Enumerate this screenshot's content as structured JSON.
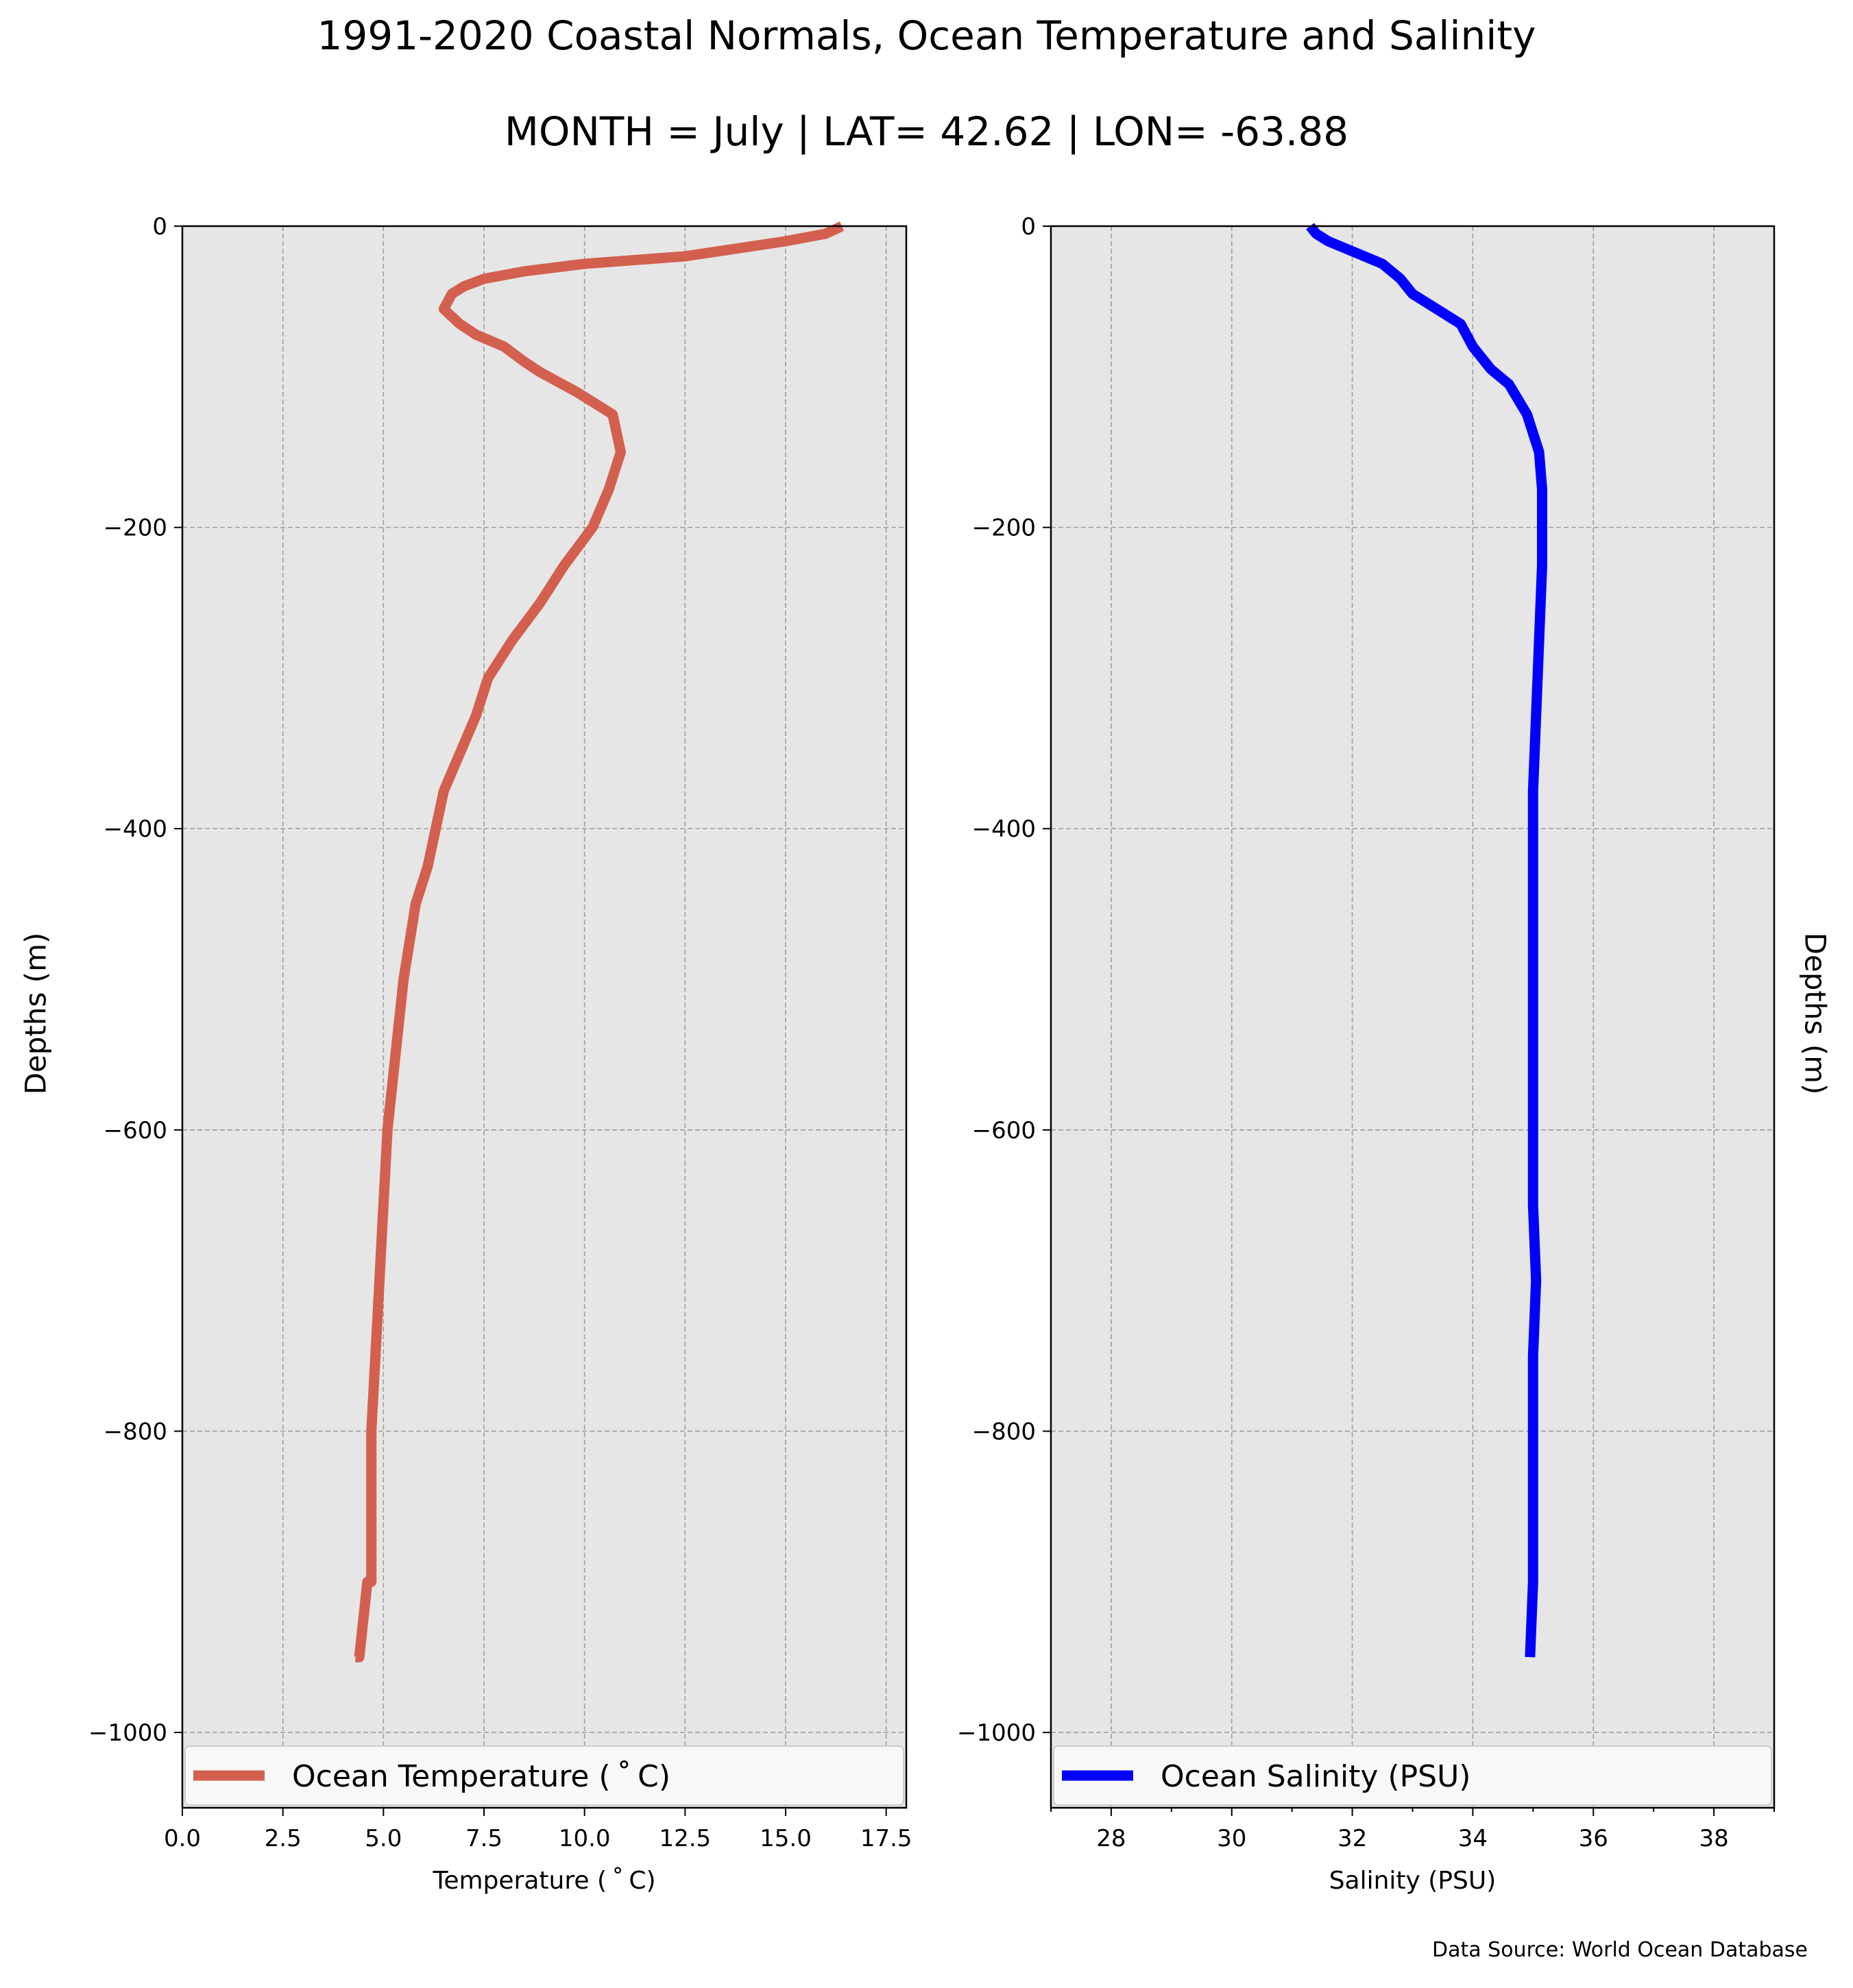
{
  "title": "1991-2020 Coastal Normals, Ocean Temperature and Salinity",
  "subtitle": "MONTH = July | LAT= 42.62 | LON= -63.88",
  "source": "Data Source: World Ocean Database",
  "ylabel_left": "Depths (m)",
  "ylabel_right": "Depths (m)",
  "colors": {
    "temperature": "#d35f4e",
    "salinity": "#0000ff",
    "plot_bg": "#e6e6e6",
    "grid": "#9e9e9e"
  },
  "chart_data": [
    {
      "type": "line",
      "xlabel": "Temperature ($^\\circ$C)",
      "xlabel_text": "Temperature ( ˚ C)",
      "xlim": [
        0,
        18
      ],
      "ylim": [
        -1050,
        0
      ],
      "xticks": [
        0.0,
        2.5,
        5.0,
        7.5,
        10.0,
        12.5,
        15.0,
        17.5
      ],
      "xtick_labels": [
        "0.0",
        "2.5",
        "5.0",
        "7.5",
        "10.0",
        "12.5",
        "15.0",
        "17.5"
      ],
      "yticks": [
        0,
        -200,
        -400,
        -600,
        -800,
        -1000
      ],
      "ytick_labels": [
        "0",
        "−200",
        "−400",
        "−600",
        "−800",
        "−1000"
      ],
      "grid": true,
      "legend_position": "bottom",
      "series": [
        {
          "name": "Ocean Temperature ($^\\circ$C)",
          "label_text": "Ocean Temperature ( ˚ C)",
          "x": [
            16.4,
            16.0,
            15.0,
            12.5,
            10.0,
            8.5,
            7.5,
            7.0,
            6.7,
            6.5,
            6.9,
            7.3,
            8.0,
            8.5,
            8.9,
            9.8,
            10.7,
            10.9,
            10.6,
            10.2,
            9.5,
            8.9,
            8.2,
            7.6,
            7.3,
            6.9,
            6.5,
            6.1,
            5.8,
            5.5,
            5.3,
            5.1,
            5.0,
            4.9,
            4.8,
            4.7,
            4.7,
            4.7,
            4.6,
            4.4,
            4.3
          ],
          "y": [
            0,
            -5,
            -10,
            -20,
            -25,
            -30,
            -35,
            -40,
            -45,
            -55,
            -65,
            -72,
            -80,
            -90,
            -97,
            -110,
            -125,
            -150,
            -175,
            -200,
            -225,
            -250,
            -275,
            -300,
            -325,
            -350,
            -375,
            -425,
            -450,
            -500,
            -550,
            -600,
            -650,
            -700,
            -750,
            -800,
            -850,
            -900,
            -900,
            -950,
            -950
          ]
        }
      ]
    },
    {
      "type": "line",
      "xlabel": "Salinity (PSU)",
      "xlim": [
        27,
        39
      ],
      "ylim": [
        -1050,
        0
      ],
      "xticks": [
        28,
        30,
        32,
        34,
        36,
        38
      ],
      "xtick_labels": [
        "28",
        "30",
        "32",
        "34",
        "36",
        "38"
      ],
      "yticks": [
        0,
        -200,
        -400,
        -600,
        -800,
        -1000
      ],
      "ytick_labels": [
        "0",
        "−200",
        "−400",
        "−600",
        "−800",
        "−1000"
      ],
      "grid": true,
      "legend_position": "bottom",
      "series": [
        {
          "name": "Ocean Salinity (PSU)",
          "x": [
            31.3,
            31.4,
            31.6,
            31.9,
            32.2,
            32.5,
            32.8,
            33.0,
            33.4,
            33.8,
            34.0,
            34.3,
            34.6,
            34.9,
            35.1,
            35.15,
            35.15,
            35.1,
            35.05,
            35.0,
            35.0,
            35.0,
            35.0,
            35.0,
            35.0,
            35.05,
            35.0,
            35.0,
            35.0,
            34.95
          ],
          "y": [
            0,
            -5,
            -10,
            -15,
            -20,
            -25,
            -35,
            -45,
            -55,
            -65,
            -80,
            -95,
            -105,
            -125,
            -150,
            -175,
            -225,
            -275,
            -325,
            -375,
            -425,
            -475,
            -550,
            -600,
            -650,
            -700,
            -750,
            -800,
            -900,
            -950
          ]
        }
      ]
    }
  ]
}
